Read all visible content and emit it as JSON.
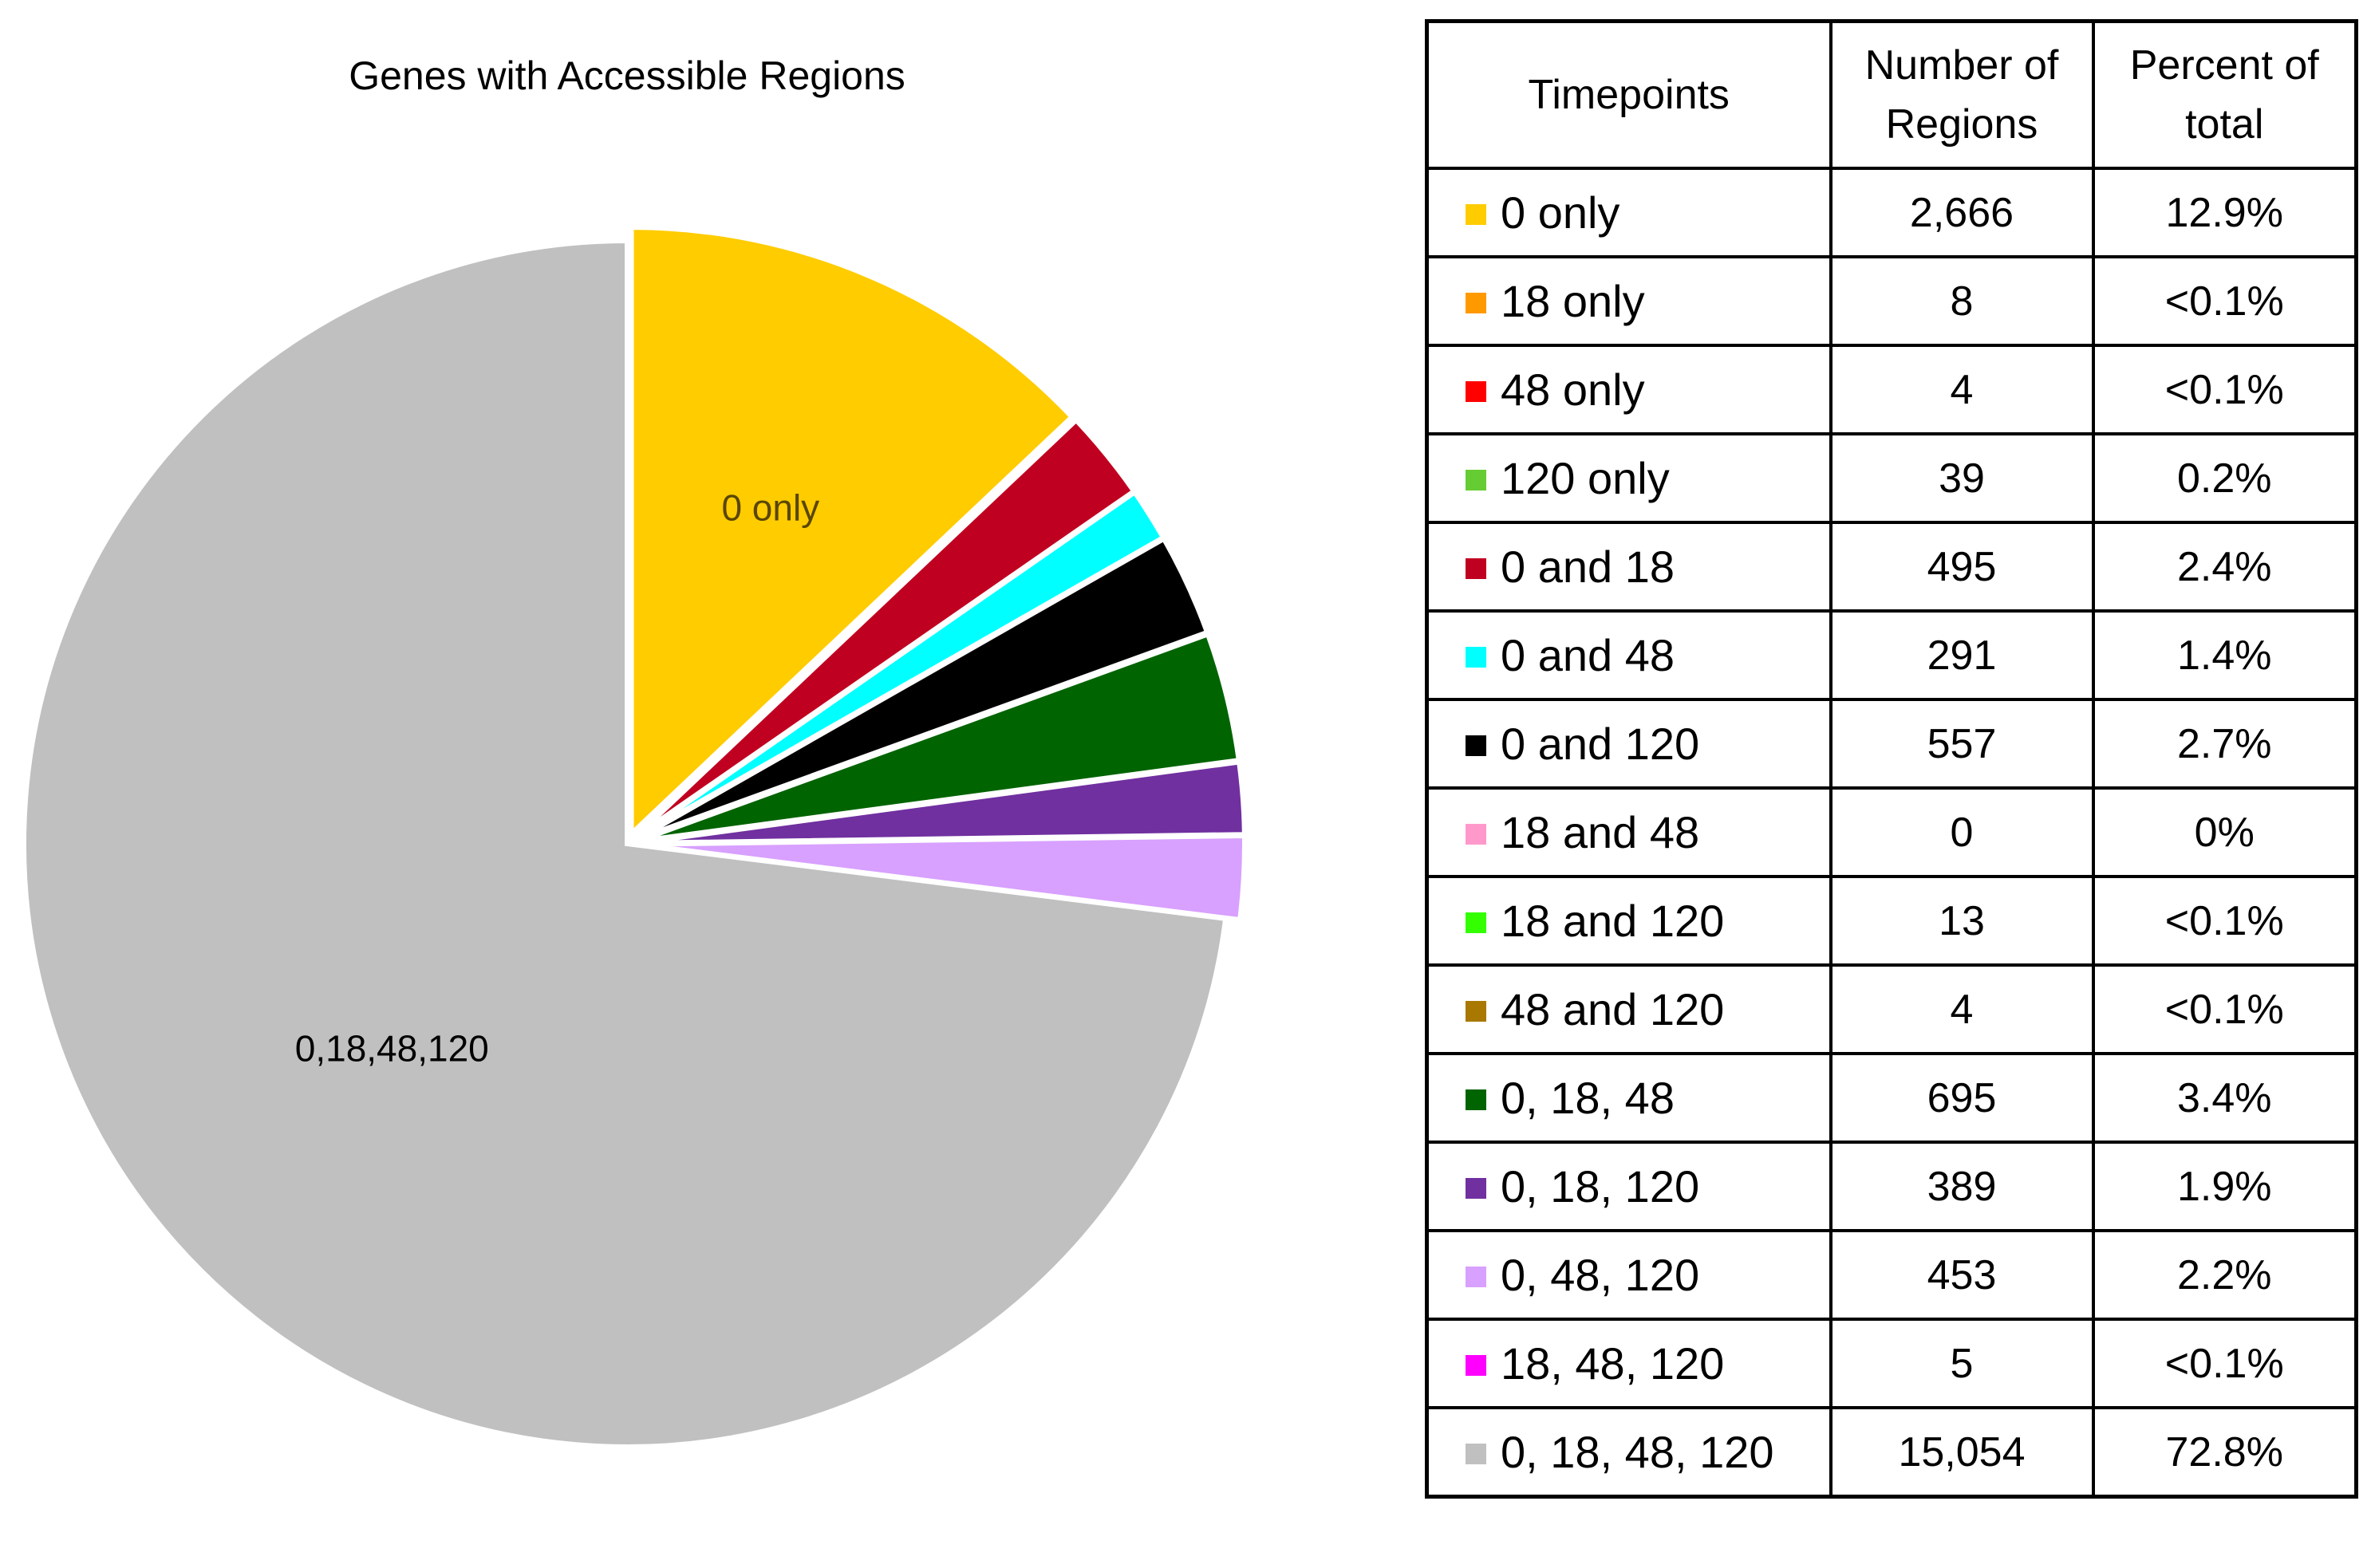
{
  "chart_data": [
    {
      "type": "pie",
      "title": "Genes with Accessible Regions",
      "start_angle": "12 o'clock",
      "direction": "clockwise",
      "explode": "wedges separated by white gaps",
      "slices": [
        {
          "label": "0 only",
          "value": 12.9,
          "color": "#FFCC00",
          "show_label": true
        },
        {
          "label": "0 and 18",
          "value": 2.4,
          "color": "#C00020",
          "show_label": false
        },
        {
          "label": "0 and 48",
          "value": 1.4,
          "color": "#00FFFF",
          "show_label": false
        },
        {
          "label": "0 and 120",
          "value": 2.7,
          "color": "#000000",
          "show_label": false
        },
        {
          "label": "0, 18, 48",
          "value": 3.4,
          "color": "#006400",
          "show_label": false
        },
        {
          "label": "0, 18, 120",
          "value": 1.9,
          "color": "#7030A0",
          "show_label": false
        },
        {
          "label": "0, 48, 120",
          "value": 2.2,
          "color": "#D8A0FF",
          "show_label": false
        },
        {
          "label": "0,18,48,120",
          "value": 72.8,
          "color": "#C0C0C0",
          "show_label": true
        }
      ]
    },
    {
      "type": "table",
      "columns": {
        "timepoints": "Timepoints",
        "regions": [
          "Number of",
          "Regions"
        ],
        "percent": [
          "Percent of",
          "total"
        ]
      },
      "rows": [
        {
          "label": "0 only",
          "regions": "2,666",
          "percent": "12.9%",
          "color": "#FFCC00"
        },
        {
          "label": "18 only",
          "regions": "8",
          "percent": "<0.1%",
          "color": "#FF9900"
        },
        {
          "label": "48 only",
          "regions": "4",
          "percent": "<0.1%",
          "color": "#FF0000"
        },
        {
          "label": "120 only",
          "regions": "39",
          "percent": "0.2%",
          "color": "#66CC33"
        },
        {
          "label": "0 and 18",
          "regions": "495",
          "percent": "2.4%",
          "color": "#C00020"
        },
        {
          "label": "0 and 48",
          "regions": "291",
          "percent": "1.4%",
          "color": "#00FFFF"
        },
        {
          "label": "0 and 120",
          "regions": "557",
          "percent": "2.7%",
          "color": "#000000"
        },
        {
          "label": "18 and 48",
          "regions": "0",
          "percent": "0%",
          "color": "#FF99CC"
        },
        {
          "label": "18 and 120",
          "regions": "13",
          "percent": "<0.1%",
          "color": "#33FF00"
        },
        {
          "label": "48 and 120",
          "regions": "4",
          "percent": "<0.1%",
          "color": "#A87800"
        },
        {
          "label": "0, 18, 48",
          "regions": "695",
          "percent": "3.4%",
          "color": "#006400"
        },
        {
          "label": "0, 18, 120",
          "regions": "389",
          "percent": "1.9%",
          "color": "#7030A0"
        },
        {
          "label": "0, 48, 120",
          "regions": "453",
          "percent": "2.2%",
          "color": "#D8A0FF"
        },
        {
          "label": "18, 48, 120",
          "regions": "5",
          "percent": "<0.1%",
          "color": "#FF00FF"
        },
        {
          "label": "0, 18, 48, 120",
          "regions": "15,054",
          "percent": "72.8%",
          "color": "#C0C0C0"
        }
      ]
    }
  ]
}
